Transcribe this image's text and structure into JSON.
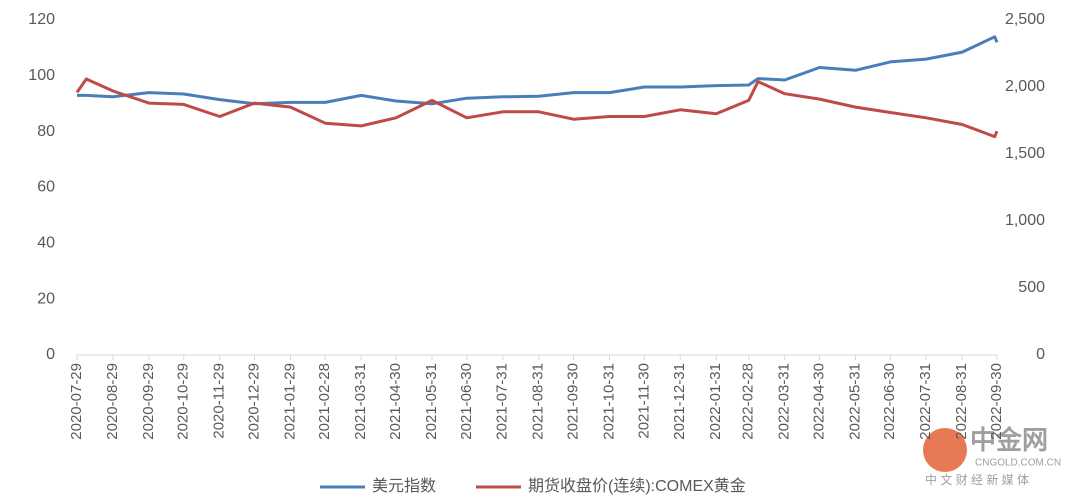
{
  "chart_data": {
    "type": "line",
    "x": [
      "2020-07-29",
      "2020-08-06",
      "2020-08-29",
      "2020-09-29",
      "2020-10-29",
      "2020-11-29",
      "2020-12-29",
      "2021-01-29",
      "2021-02-28",
      "2021-03-31",
      "2021-04-30",
      "2021-05-31",
      "2021-06-30",
      "2021-07-31",
      "2021-08-31",
      "2021-09-30",
      "2021-10-31",
      "2021-11-30",
      "2021-12-31",
      "2022-01-31",
      "2022-02-28",
      "2022-03-08",
      "2022-03-31",
      "2022-04-30",
      "2022-05-31",
      "2022-06-30",
      "2022-07-31",
      "2022-08-31",
      "2022-09-28",
      "2022-09-30"
    ],
    "xlim": [
      "2020-07-29",
      "2022-09-30"
    ],
    "xticks": [
      "2020-07-29",
      "2020-08-29",
      "2020-09-29",
      "2020-10-29",
      "2020-11-29",
      "2020-12-29",
      "2021-01-29",
      "2021-02-28",
      "2021-03-31",
      "2021-04-30",
      "2021-05-31",
      "2021-06-30",
      "2021-07-31",
      "2021-08-31",
      "2021-09-30",
      "2021-10-31",
      "2021-11-30",
      "2021-12-31",
      "2022-01-31",
      "2022-02-28",
      "2022-03-31",
      "2022-04-30",
      "2022-05-31",
      "2022-06-30",
      "2022-07-31",
      "2022-08-31",
      "2022-09-30"
    ],
    "ylim": [
      0,
      120
    ],
    "yticks": [
      0,
      20,
      40,
      60,
      80,
      100,
      120
    ],
    "y2lim": [
      0,
      2500
    ],
    "y2ticks": [
      0,
      500,
      {
        "value": 1000,
        "label": "1,000"
      },
      {
        "value": 1500,
        "label": "1,500"
      },
      {
        "value": 2000,
        "label": "2,000"
      },
      {
        "value": 2500,
        "label": "2,500"
      }
    ],
    "series": [
      {
        "name": "美元指数",
        "color": "#4a7ebb",
        "values": [
          93,
          93,
          92.5,
          94,
          93.5,
          91.5,
          90,
          90.5,
          90.5,
          93,
          91,
          90,
          92,
          92.5,
          92.7,
          94,
          94,
          96,
          96,
          96.5,
          96.7,
          99,
          98.5,
          103,
          102,
          105,
          106,
          108.5,
          114,
          112
        ]
      },
      {
        "name": "期货收盘价(连续):COMEX黄金",
        "color": "#be4b48",
        "axis": "y2",
        "values": [
          1960,
          2060,
          1970,
          1880,
          1870,
          1780,
          1880,
          1850,
          1730,
          1710,
          1770,
          1900,
          1770,
          1815,
          1815,
          1760,
          1780,
          1780,
          1830,
          1800,
          1900,
          2040,
          1950,
          1910,
          1850,
          1810,
          1770,
          1720,
          1630,
          1670
        ]
      }
    ]
  },
  "watermark": {
    "brand": "中金网",
    "site": "CNGOLD.COM.CN",
    "slogan": "中 文 财 经 新 媒 体"
  }
}
